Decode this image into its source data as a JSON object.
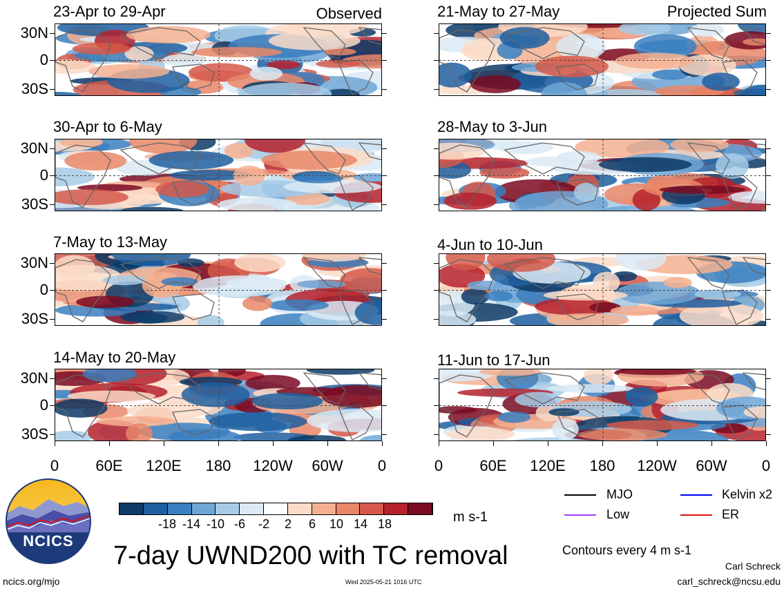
{
  "chart_data": {
    "type": "heatmap",
    "title": "7-day UWND200 with TC removal",
    "unit_label": "m s-1",
    "ytick_labels": [
      "30N",
      "0",
      "30S"
    ],
    "xtick_labels": [
      "0",
      "60E",
      "120E",
      "180",
      "120W",
      "60W",
      "0"
    ],
    "left_column_label": "Observed",
    "right_column_label": "Projected Sum",
    "left_panels": [
      {
        "title": "23-Apr to 29-Apr"
      },
      {
        "title": "30-Apr to 6-May"
      },
      {
        "title": "7-May to 13-May"
      },
      {
        "title": "14-May to 20-May"
      }
    ],
    "right_panels": [
      {
        "title": "21-May to 27-May"
      },
      {
        "title": "28-May to 3-Jun"
      },
      {
        "title": "4-Jun to 10-Jun"
      },
      {
        "title": "11-Jun to 17-Jun"
      }
    ],
    "colorbar": {
      "colors": [
        "#0d3a66",
        "#1f5fa0",
        "#3a7fc0",
        "#6ea6d6",
        "#a6cbe6",
        "#dbeaf5",
        "#ffffff",
        "#fbdcc8",
        "#f5b090",
        "#e98768",
        "#d5594a",
        "#b5222d",
        "#7a0b22"
      ],
      "tick_labels": [
        "-18",
        "-14",
        "-10",
        "-6",
        "-2",
        "2",
        "6",
        "10",
        "14",
        "18"
      ]
    },
    "legend": [
      {
        "label": "MJO",
        "color": "#000000"
      },
      {
        "label": "Kelvin x2",
        "color": "#0000ff"
      },
      {
        "label": "Low",
        "color": "#a040f0"
      },
      {
        "label": "ER",
        "color": "#e01010"
      }
    ],
    "contour_note": "Contours every 4 m s-1"
  },
  "branding": {
    "logo_text": "NCICS",
    "site": "ncics.org/mjo",
    "timestamp": "Wed 2025-05-21 1016 UTC",
    "author": "Carl Schreck",
    "email": "carl_schreck@ncsu.edu"
  }
}
